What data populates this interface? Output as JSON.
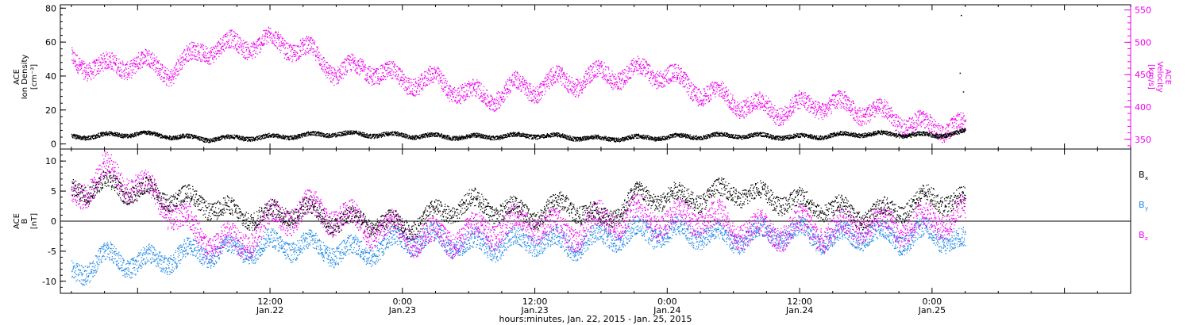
{
  "chart_data": [
    {
      "type": "scatter",
      "panel": "top",
      "time_unit": "hours from 0:00 Jan.22, 2015",
      "x_range_hours": [
        -7,
        90
      ],
      "left_axis": {
        "label_lines": [
          "ACE",
          "Ion Density"
        ],
        "unit": "[cm⁻³]",
        "ylim": [
          -3,
          82
        ],
        "ticks": [
          0,
          20,
          40,
          60,
          80
        ],
        "color": "#000000"
      },
      "right_axis": {
        "label_lines": [
          "ACE",
          "Velocity"
        ],
        "unit": "[km/s]",
        "ylim": [
          335,
          558
        ],
        "ticks": [
          350,
          400,
          450,
          500,
          550
        ],
        "color": "#ee00ee"
      },
      "series": [
        {
          "key": "density",
          "axis": "left",
          "color": "#000000",
          "t": [
            -6,
            0,
            6,
            12,
            18,
            24,
            30,
            36,
            42,
            48,
            54,
            60,
            66,
            72,
            74,
            75
          ],
          "y": [
            4,
            6,
            3,
            4,
            6,
            5,
            4,
            5,
            3,
            4,
            5,
            4,
            6,
            5,
            6,
            7
          ],
          "spikes": [
            {
              "t": 74.6,
              "y": 76
            },
            {
              "t": 74.5,
              "y": 42
            },
            {
              "t": 74.8,
              "y": 31
            }
          ]
        },
        {
          "key": "velocity",
          "axis": "right",
          "color": "#ee00ee",
          "t": [
            -6,
            -3,
            0,
            3,
            6,
            9,
            12,
            15,
            18,
            21,
            24,
            27,
            30,
            32,
            34,
            36,
            38,
            40,
            42,
            44,
            46,
            48,
            50,
            52,
            54,
            56,
            58,
            60,
            62,
            64,
            66,
            68,
            70,
            72,
            74,
            75
          ],
          "y": [
            470,
            460,
            470,
            455,
            490,
            495,
            500,
            490,
            455,
            460,
            440,
            440,
            420,
            415,
            430,
            430,
            440,
            440,
            450,
            450,
            455,
            450,
            430,
            420,
            410,
            400,
            395,
            400,
            405,
            400,
            395,
            385,
            375,
            368,
            372,
            365
          ]
        }
      ]
    },
    {
      "type": "scatter",
      "panel": "bottom",
      "time_unit": "hours from 0:00 Jan.22, 2015",
      "x_range_hours": [
        -7,
        90
      ],
      "left_axis": {
        "label_lines": [
          "ACE",
          "B"
        ],
        "unit": "[nT]",
        "ylim": [
          -12,
          12
        ],
        "ticks": [
          -10,
          -5,
          0,
          5,
          10
        ]
      },
      "zero_line": true,
      "series": [
        {
          "key": "bx",
          "name": "Bx",
          "legend_sub": "x",
          "color": "#000000",
          "t": [
            -6,
            -3,
            0,
            3,
            6,
            9,
            12,
            15,
            18,
            21,
            24,
            27,
            30,
            33,
            36,
            39,
            42,
            45,
            48,
            51,
            54,
            57,
            60,
            63,
            66,
            69,
            72,
            75
          ],
          "y": [
            5,
            6,
            5,
            4,
            3,
            1,
            1,
            2,
            0,
            0,
            -1,
            1,
            3,
            2,
            1,
            3,
            0,
            4,
            4,
            4,
            5,
            4,
            3,
            2,
            1,
            2,
            4,
            3
          ]
        },
        {
          "key": "by",
          "name": "By",
          "legend_sub": "y",
          "color": "#1e88e5",
          "t": [
            -6,
            -3,
            0,
            3,
            6,
            9,
            12,
            15,
            18,
            21,
            24,
            27,
            30,
            33,
            36,
            39,
            42,
            45,
            48,
            51,
            54,
            57,
            60,
            63,
            66,
            69,
            72,
            75
          ],
          "y": [
            -9,
            -6,
            -7,
            -6,
            -5,
            -5,
            -4,
            -4,
            -5,
            -5,
            -3,
            -3,
            -4,
            -4,
            -3,
            -4,
            -3,
            -2,
            -2,
            -2,
            -3,
            -2,
            -2,
            -3,
            -2,
            -3,
            -2,
            -4
          ]
        },
        {
          "key": "bz",
          "name": "Bz",
          "legend_sub": "z",
          "color": "#ee00ee",
          "t": [
            -6,
            -3,
            0,
            3,
            6,
            9,
            12,
            15,
            18,
            21,
            24,
            27,
            30,
            33,
            36,
            39,
            42,
            45,
            48,
            51,
            54,
            57,
            60,
            63,
            66,
            69,
            72,
            75
          ],
          "y": [
            4,
            8,
            6,
            2,
            -3,
            -4,
            0,
            2,
            1,
            -1,
            -2,
            -3,
            -2,
            -1,
            0,
            -2,
            0,
            1,
            0,
            1,
            -1,
            -2,
            -1,
            -2,
            0,
            -1,
            0,
            1
          ]
        }
      ]
    }
  ],
  "x_axis": {
    "ticks": [
      {
        "t": 12,
        "line1": "12:00",
        "line2": "Jan.22"
      },
      {
        "t": 24,
        "line1": "0:00",
        "line2": "Jan.23"
      },
      {
        "t": 36,
        "line1": "12:00",
        "line2": "Jan.23"
      },
      {
        "t": 48,
        "line1": "0:00",
        "line2": "Jan.24"
      },
      {
        "t": 60,
        "line1": "12:00",
        "line2": "Jan.24"
      },
      {
        "t": 72,
        "line1": "0:00",
        "line2": "Jan.25"
      }
    ],
    "title": "hours:minutes, Jan. 22, 2015 - Jan. 25, 2015"
  }
}
